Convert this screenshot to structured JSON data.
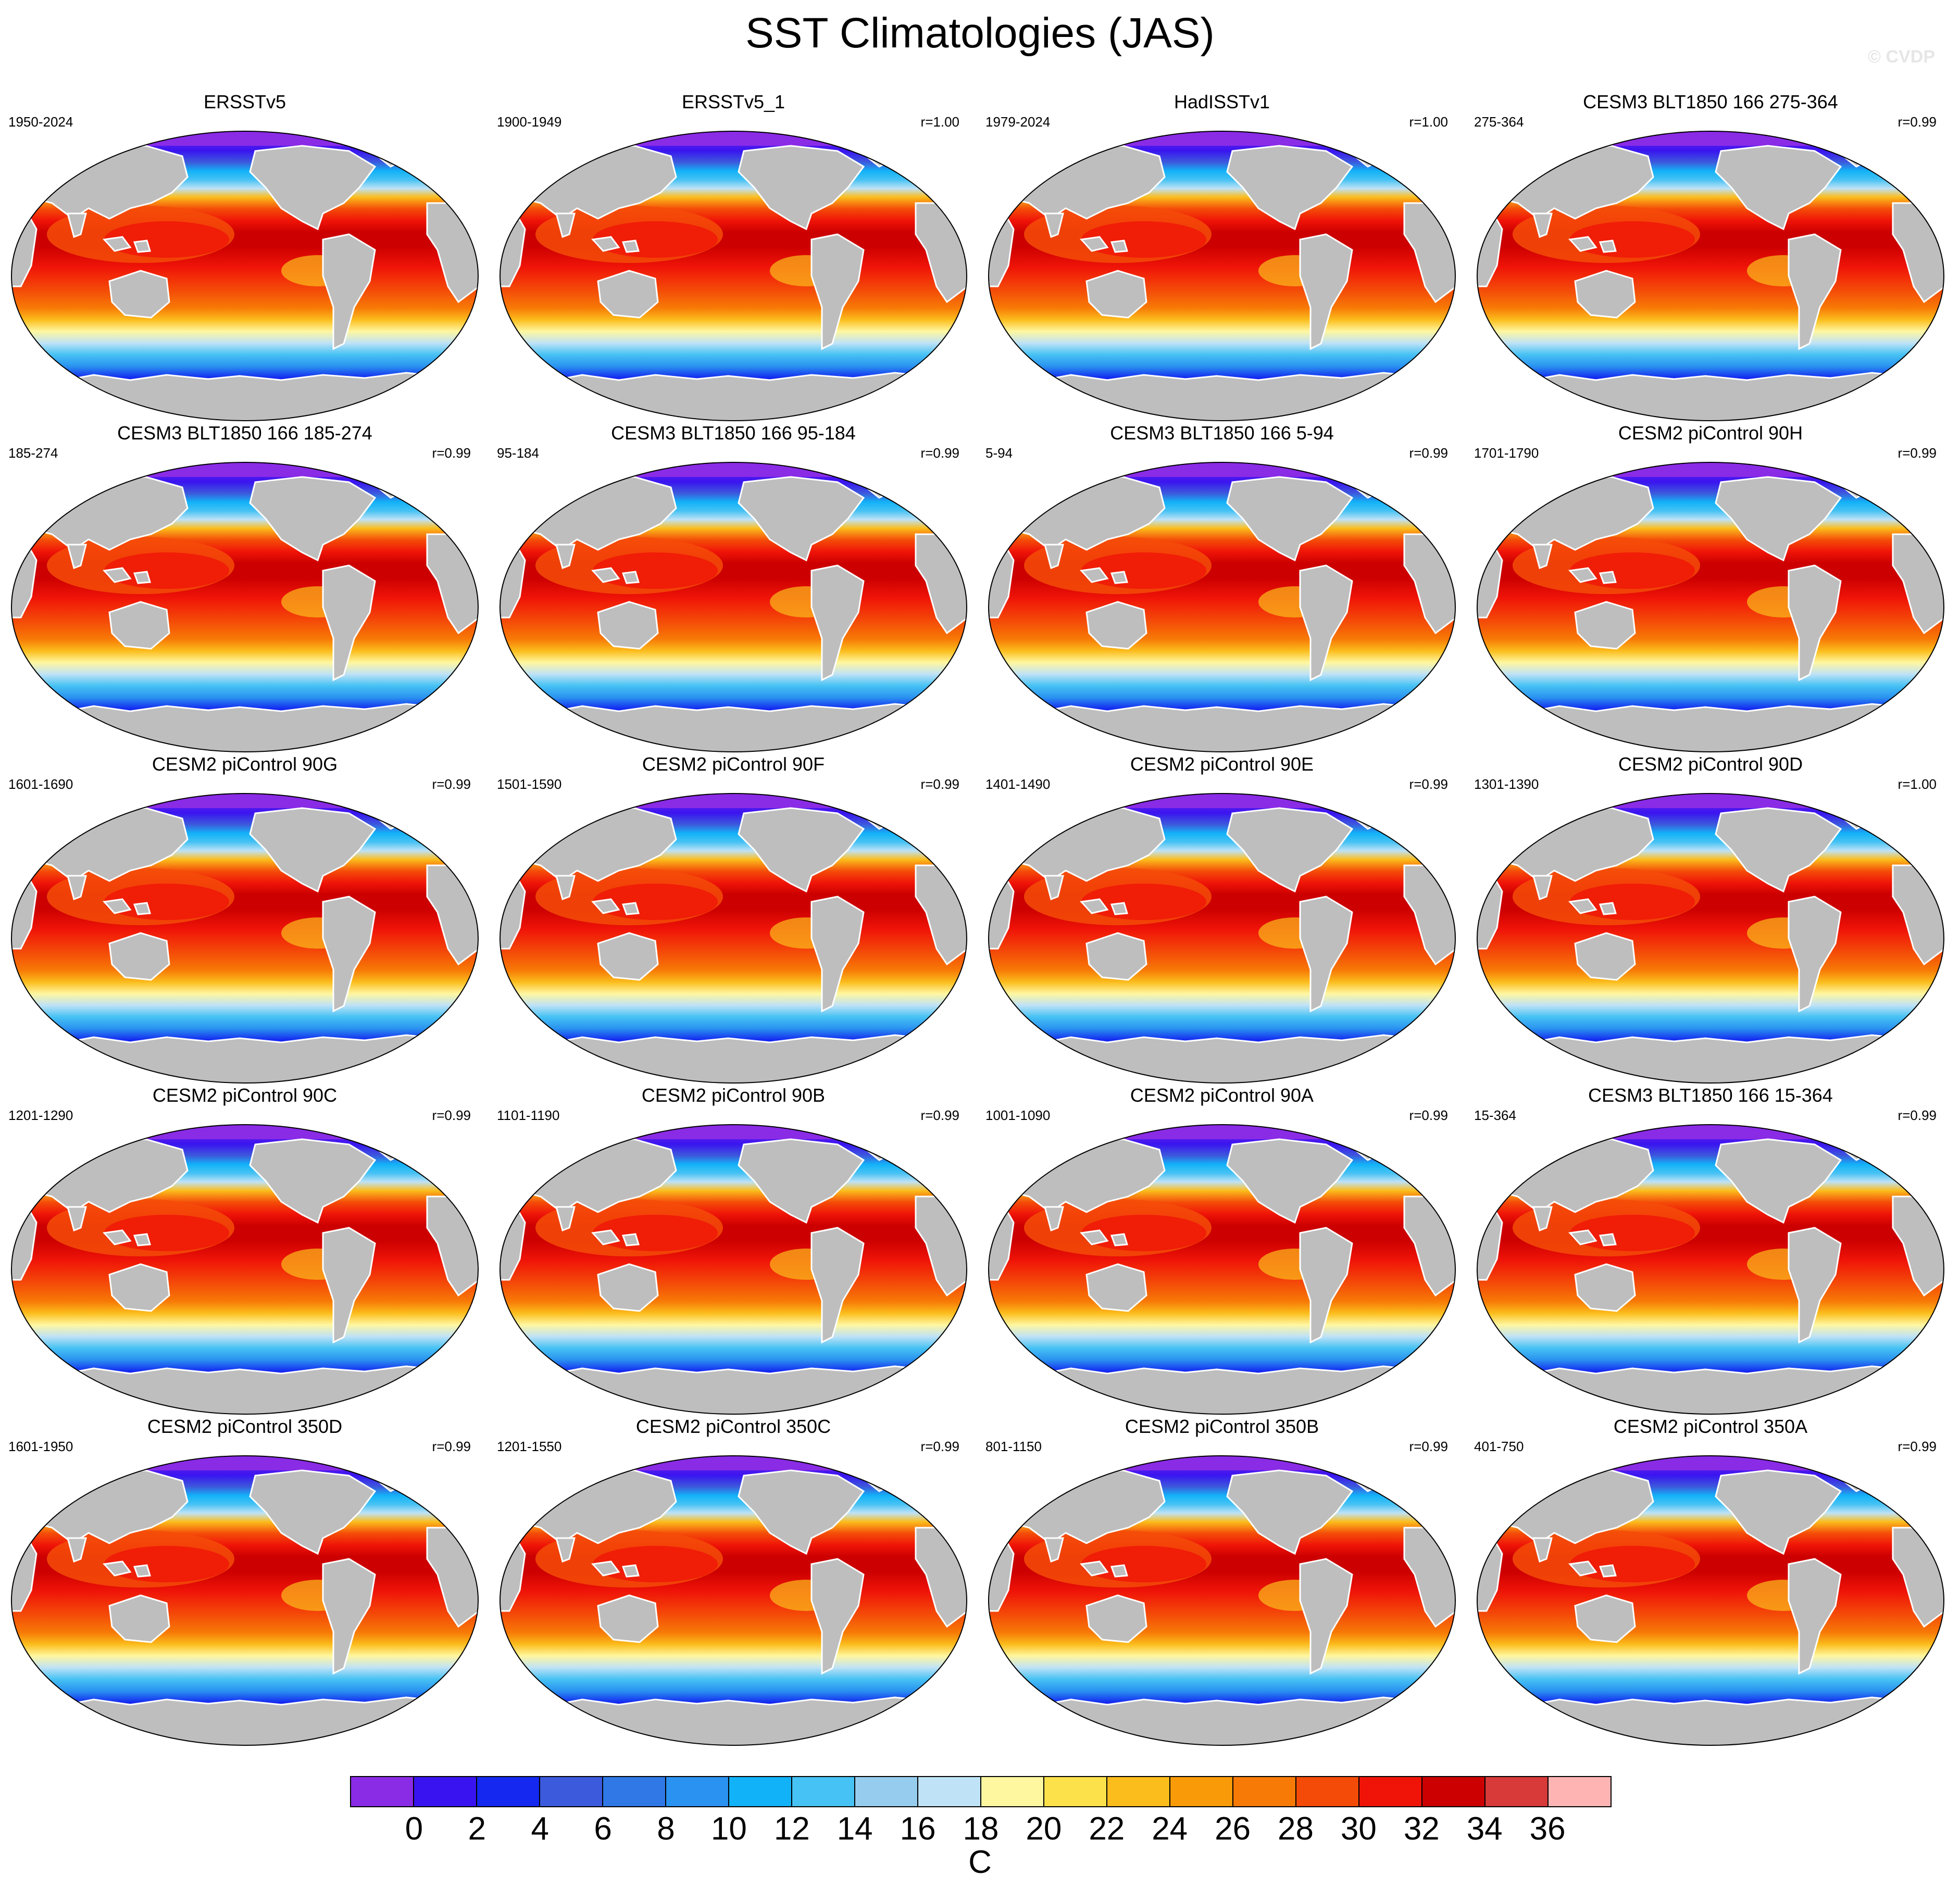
{
  "title": "SST Climatologies (JAS)",
  "copyright": "© CVDP",
  "panels": [
    {
      "title": "ERSSTv5",
      "years": "1950-2024",
      "r": ""
    },
    {
      "title": "ERSSTv5_1",
      "years": "1900-1949",
      "r": "r=1.00"
    },
    {
      "title": "HadISSTv1",
      "years": "1979-2024",
      "r": "r=1.00"
    },
    {
      "title": "CESM3 BLT1850 166 275-364",
      "years": "275-364",
      "r": "r=0.99"
    },
    {
      "title": "CESM3 BLT1850 166 185-274",
      "years": "185-274",
      "r": "r=0.99"
    },
    {
      "title": "CESM3 BLT1850 166 95-184",
      "years": "95-184",
      "r": "r=0.99"
    },
    {
      "title": "CESM3 BLT1850 166 5-94",
      "years": "5-94",
      "r": "r=0.99"
    },
    {
      "title": "CESM2 piControl 90H",
      "years": "1701-1790",
      "r": "r=0.99"
    },
    {
      "title": "CESM2 piControl 90G",
      "years": "1601-1690",
      "r": "r=0.99"
    },
    {
      "title": "CESM2 piControl 90F",
      "years": "1501-1590",
      "r": "r=0.99"
    },
    {
      "title": "CESM2 piControl 90E",
      "years": "1401-1490",
      "r": "r=0.99"
    },
    {
      "title": "CESM2 piControl 90D",
      "years": "1301-1390",
      "r": "r=1.00"
    },
    {
      "title": "CESM2 piControl 90C",
      "years": "1201-1290",
      "r": "r=0.99"
    },
    {
      "title": "CESM2 piControl 90B",
      "years": "1101-1190",
      "r": "r=0.99"
    },
    {
      "title": "CESM2 piControl 90A",
      "years": "1001-1090",
      "r": "r=0.99"
    },
    {
      "title": "CESM3 BLT1850 166 15-364",
      "years": "15-364",
      "r": "r=0.99"
    },
    {
      "title": "CESM2 piControl 350D",
      "years": "1601-1950",
      "r": "r=0.99"
    },
    {
      "title": "CESM2 piControl 350C",
      "years": "1201-1550",
      "r": "r=0.99"
    },
    {
      "title": "CESM2 piControl 350B",
      "years": "801-1150",
      "r": "r=0.99"
    },
    {
      "title": "CESM2 piControl 350A",
      "years": "401-750",
      "r": "r=0.99"
    }
  ],
  "colorbar": {
    "unit": "C",
    "tick_labels": [
      "0",
      "2",
      "4",
      "6",
      "8",
      "10",
      "12",
      "14",
      "16",
      "18",
      "20",
      "22",
      "24",
      "26",
      "28",
      "30",
      "32",
      "34",
      "36"
    ],
    "colors": [
      "#8a2be6",
      "#3a14f0",
      "#1428f0",
      "#3c5adc",
      "#2f78e6",
      "#2a92f0",
      "#12b2f8",
      "#46c2f4",
      "#96cdee",
      "#bfe2f6",
      "#fff7a0",
      "#fde14a",
      "#fbbd1c",
      "#f99b08",
      "#f77a06",
      "#f44c08",
      "#f01408",
      "#cc0000",
      "#d83a3a",
      "#ffb4b4"
    ]
  },
  "map_colors": {
    "land": "#bebebe",
    "land_edge": "#ffffff",
    "ocean_frame": "#000000"
  }
}
